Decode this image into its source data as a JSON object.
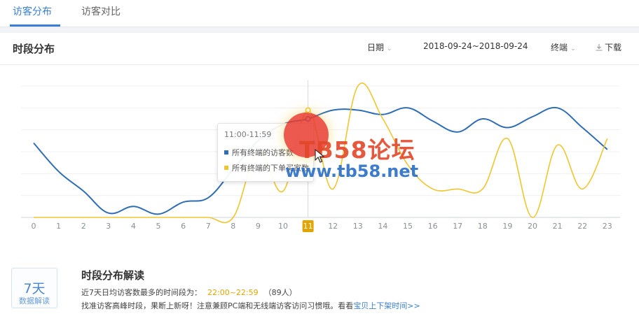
{
  "tabs": [
    {
      "label": "访客分布",
      "active": true
    },
    {
      "label": "访客对比",
      "active": false
    }
  ],
  "section_title": "时段分布",
  "controls": {
    "date_label": "日期",
    "date_range": "2018-09-24~2018-09-24",
    "terminal_label": "终端",
    "download_label": "下载"
  },
  "tooltip": {
    "time": "11:00-11:59",
    "series1": "所有终端的访客数",
    "series2": "所有终端的下单买家数"
  },
  "watermark": {
    "line1": "TB58论坛",
    "line2": "www.tb58.net"
  },
  "interpretation": {
    "badge_main": "7天",
    "badge_sub": "数据解读",
    "title": "时段分布解读",
    "line1_prefix": "近7天日均访客数最多的时间段为：",
    "line1_highlight": "22:00~22:59",
    "line1_suffix": "（89人）",
    "line2_text": "找准访客高峰时段，果断上新呀！注意兼顾PC端和无线端访客访问习惯哦。看看",
    "line2_link": "宝贝上下架时间>>"
  },
  "colors": {
    "accent": "#3a7fd5",
    "series_visitors": "#2f6db5",
    "series_buyers": "#f0c52e",
    "highlight_badge": "#e2a500"
  },
  "chart_data": {
    "type": "line",
    "x": [
      "0",
      "1",
      "2",
      "3",
      "4",
      "5",
      "6",
      "7",
      "8",
      "9",
      "10",
      "11",
      "12",
      "13",
      "14",
      "15",
      "16",
      "17",
      "18",
      "19",
      "20",
      "21",
      "22",
      "23"
    ],
    "highlighted_x": "11",
    "ylim": [
      0,
      6
    ],
    "grid": true,
    "series": [
      {
        "name": "所有终端的访客数",
        "color": "#2f6db5",
        "values": [
          3.4,
          2.1,
          1.2,
          0.2,
          0.5,
          0.15,
          0.7,
          0.9,
          2.2,
          3.5,
          4.25,
          4.5,
          4.9,
          4.9,
          4.7,
          5.0,
          4.4,
          3.9,
          4.5,
          4.1,
          4.6,
          5.0,
          4.1,
          3.1
        ]
      },
      {
        "name": "所有终端的下单买家数",
        "color": "#f0c52e",
        "values": [
          0,
          0,
          0,
          0,
          0,
          0,
          0,
          0,
          0,
          3.0,
          1.2,
          4.9,
          1.3,
          6.0,
          4.5,
          2.4,
          1.3,
          1.3,
          1.3,
          3.6,
          0,
          3.3,
          1.3,
          3.6
        ]
      }
    ]
  }
}
